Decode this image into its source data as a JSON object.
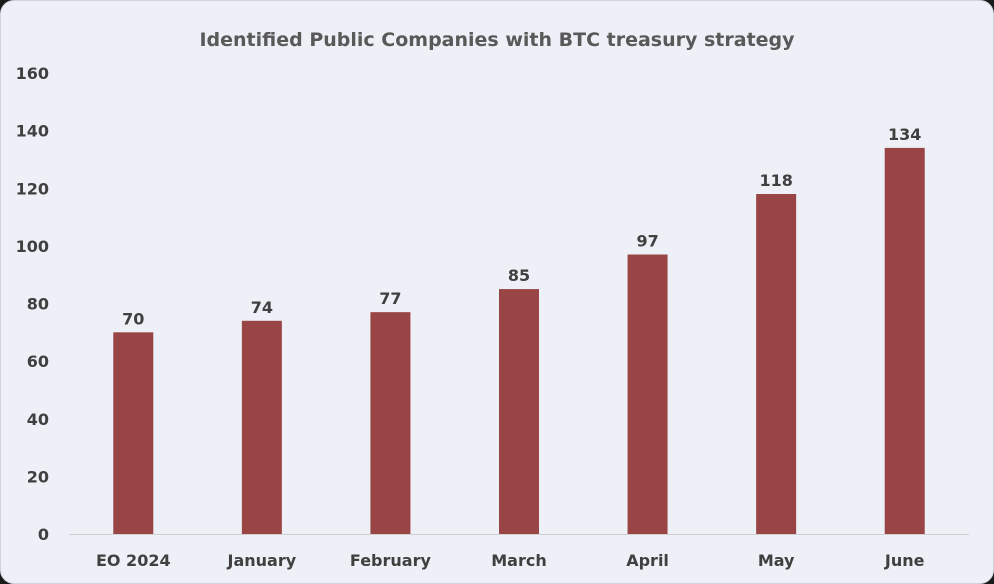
{
  "chart_data": {
    "type": "bar",
    "title": "Identified Public Companies with BTC treasury strategy",
    "categories": [
      "EO 2024",
      "January",
      "February",
      "March",
      "April",
      "May",
      "June"
    ],
    "values": [
      70,
      74,
      77,
      85,
      97,
      118,
      134
    ],
    "ylim": [
      0,
      160
    ],
    "yticks": [
      0,
      20,
      40,
      60,
      80,
      100,
      120,
      140,
      160
    ],
    "xlabel": "",
    "ylabel": "",
    "grid": false,
    "legend": "none",
    "bar_color": "#9a4545",
    "data_labels": true
  }
}
